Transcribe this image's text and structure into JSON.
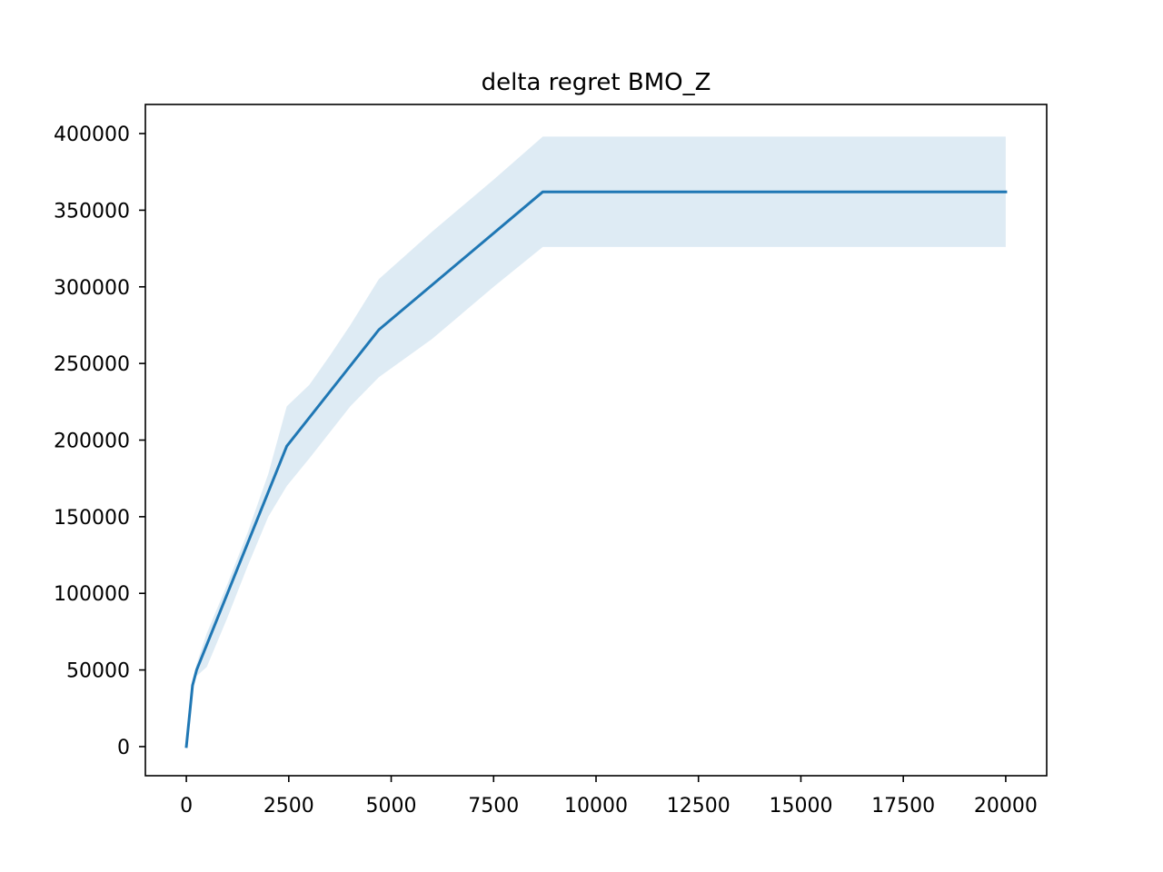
{
  "chart_data": {
    "type": "line",
    "title": "delta regret BMO_Z",
    "xlabel": "",
    "ylabel": "",
    "xlim": [
      -1000,
      21000
    ],
    "ylim": [
      -19000,
      419000
    ],
    "grid": false,
    "legend": "none",
    "x_ticks": [
      0,
      2500,
      5000,
      7500,
      10000,
      12500,
      15000,
      17500,
      20000
    ],
    "y_ticks": [
      0,
      50000,
      100000,
      150000,
      200000,
      250000,
      300000,
      350000,
      400000
    ],
    "series": [
      {
        "color": "#1f77b4",
        "band_color": "#1f77b4",
        "band_opacity": 0.15,
        "points": [
          {
            "x": 0,
            "y": 0
          },
          {
            "x": 150,
            "y": 40000
          },
          {
            "x": 250,
            "y": 50000
          },
          {
            "x": 2450,
            "y": 196000
          },
          {
            "x": 4700,
            "y": 272000
          },
          {
            "x": 8700,
            "y": 362000
          },
          {
            "x": 20000,
            "y": 362000
          }
        ],
        "upper": [
          {
            "x": 0,
            "y": 0
          },
          {
            "x": 150,
            "y": 42000
          },
          {
            "x": 250,
            "y": 54000
          },
          {
            "x": 500,
            "y": 74000
          },
          {
            "x": 1000,
            "y": 106000
          },
          {
            "x": 1500,
            "y": 140000
          },
          {
            "x": 2000,
            "y": 178000
          },
          {
            "x": 2450,
            "y": 222000
          },
          {
            "x": 3000,
            "y": 236000
          },
          {
            "x": 3500,
            "y": 255000
          },
          {
            "x": 4000,
            "y": 275000
          },
          {
            "x": 4700,
            "y": 305000
          },
          {
            "x": 6000,
            "y": 336000
          },
          {
            "x": 7500,
            "y": 370000
          },
          {
            "x": 8700,
            "y": 398000
          },
          {
            "x": 20000,
            "y": 398000
          }
        ],
        "lower": [
          {
            "x": 0,
            "y": 0
          },
          {
            "x": 150,
            "y": 36000
          },
          {
            "x": 250,
            "y": 46000
          },
          {
            "x": 500,
            "y": 52000
          },
          {
            "x": 1000,
            "y": 84000
          },
          {
            "x": 1500,
            "y": 118000
          },
          {
            "x": 2000,
            "y": 150000
          },
          {
            "x": 2450,
            "y": 170000
          },
          {
            "x": 3000,
            "y": 188000
          },
          {
            "x": 3500,
            "y": 205000
          },
          {
            "x": 4000,
            "y": 222000
          },
          {
            "x": 4700,
            "y": 241000
          },
          {
            "x": 6000,
            "y": 266000
          },
          {
            "x": 7500,
            "y": 300000
          },
          {
            "x": 8700,
            "y": 326000
          },
          {
            "x": 20000,
            "y": 326000
          }
        ]
      }
    ]
  }
}
